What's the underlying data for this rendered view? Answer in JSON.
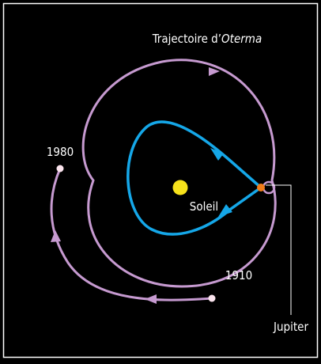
{
  "title": {
    "prefix": "Trajectoire d’",
    "italic": "Oterma"
  },
  "labels": {
    "year_1980": "1980",
    "sun": "Soleil",
    "year_1910": "1910",
    "planet": "Jupiter"
  }
}
